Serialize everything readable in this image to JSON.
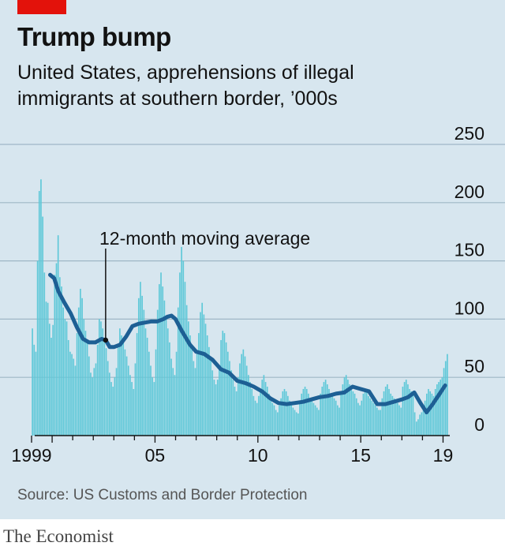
{
  "colors": {
    "background": "#d7e6ef",
    "bars": "#5ec8d8",
    "line": "#1d5f94",
    "accent": "#e3120b"
  },
  "title": "Trump bump",
  "subtitle_line1": "United States, apprehensions of illegal",
  "subtitle_line2": "immigrants at southern border, ’000s",
  "source": "Source: US Customs and Border Protection",
  "footer": "The Economist",
  "chart_data": {
    "type": "bar",
    "title": "Trump bump",
    "ylabel": "apprehensions of illegal immigrants at southern border, ’000s",
    "ylim": [
      0,
      250
    ],
    "yticks": [
      0,
      50,
      100,
      150,
      200,
      250
    ],
    "ytick_labels": [
      "0",
      "50",
      "100",
      "150",
      "200",
      "250"
    ],
    "xlim": [
      1999.0,
      2019.25
    ],
    "xticks": [
      1999,
      2005,
      2010,
      2015,
      2019
    ],
    "xtick_labels": [
      "1999",
      "05",
      "10",
      "15",
      "19"
    ],
    "grid": true,
    "bar_values_monthly_from_Jan_1999": [
      92,
      78,
      72,
      150,
      210,
      220,
      188,
      140,
      115,
      114,
      96,
      84,
      95,
      138,
      148,
      172,
      136,
      128,
      110,
      100,
      98,
      82,
      72,
      70,
      66,
      60,
      88,
      110,
      126,
      118,
      100,
      90,
      82,
      68,
      54,
      50,
      58,
      62,
      78,
      100,
      98,
      92,
      82,
      75,
      64,
      54,
      46,
      42,
      50,
      58,
      76,
      92,
      86,
      82,
      74,
      68,
      60,
      52,
      46,
      40,
      62,
      88,
      118,
      132,
      120,
      108,
      92,
      84,
      72,
      60,
      50,
      46,
      74,
      108,
      130,
      140,
      128,
      116,
      102,
      92,
      80,
      66,
      58,
      52,
      72,
      110,
      140,
      162,
      150,
      132,
      112,
      98,
      86,
      74,
      64,
      58,
      70,
      88,
      106,
      114,
      104,
      96,
      86,
      76,
      66,
      56,
      48,
      44,
      48,
      60,
      82,
      90,
      88,
      80,
      72,
      64,
      56,
      48,
      42,
      38,
      50,
      62,
      70,
      74,
      68,
      60,
      52,
      46,
      40,
      34,
      30,
      28,
      34,
      40,
      48,
      52,
      46,
      42,
      36,
      32,
      28,
      26,
      22,
      20,
      26,
      32,
      38,
      40,
      38,
      34,
      30,
      26,
      24,
      22,
      20,
      19,
      30,
      36,
      40,
      42,
      40,
      36,
      32,
      30,
      28,
      26,
      24,
      22,
      36,
      42,
      46,
      48,
      44,
      40,
      36,
      34,
      32,
      30,
      26,
      24,
      38,
      44,
      50,
      52,
      48,
      44,
      40,
      38,
      36,
      32,
      28,
      26,
      30,
      36,
      40,
      38,
      34,
      32,
      30,
      28,
      26,
      24,
      22,
      22,
      32,
      38,
      42,
      44,
      40,
      36,
      34,
      32,
      30,
      28,
      26,
      24,
      42,
      46,
      48,
      44,
      40,
      38,
      36,
      20,
      12,
      14,
      18,
      20,
      24,
      30,
      36,
      40,
      38,
      36,
      34,
      40,
      44,
      46,
      48,
      50,
      58,
      64,
      70
    ],
    "series": [
      {
        "name": "12-month moving average",
        "x": [
          1999.9,
          2000.1,
          2000.3,
          2000.6,
          2000.9,
          2001.2,
          2001.5,
          2001.8,
          2002.1,
          2002.4,
          2002.6,
          2002.8,
          2003.0,
          2003.3,
          2003.6,
          2003.9,
          2004.2,
          2004.5,
          2004.8,
          2005.1,
          2005.4,
          2005.6,
          2005.8,
          2006.0,
          2006.3,
          2006.7,
          2007.0,
          2007.4,
          2007.8,
          2008.2,
          2008.6,
          2009.0,
          2009.4,
          2009.8,
          2010.2,
          2010.6,
          2011.0,
          2011.4,
          2011.8,
          2012.2,
          2012.6,
          2013.0,
          2013.4,
          2013.8,
          2014.2,
          2014.6,
          2015.0,
          2015.4,
          2015.8,
          2016.2,
          2016.6,
          2017.0,
          2017.3,
          2017.6,
          2017.9,
          2018.2,
          2018.5,
          2018.8,
          2019.1
        ],
        "values": [
          138,
          135,
          124,
          114,
          105,
          93,
          83,
          80,
          80,
          83,
          82,
          76,
          76,
          78,
          85,
          94,
          96,
          97,
          98,
          98,
          100,
          102,
          103,
          100,
          90,
          78,
          72,
          70,
          65,
          57,
          54,
          47,
          45,
          42,
          38,
          32,
          28,
          27,
          28,
          29,
          31,
          33,
          34,
          36,
          37,
          42,
          40,
          38,
          27,
          27,
          29,
          31,
          33,
          37,
          28,
          20,
          27,
          35,
          43
        ]
      }
    ],
    "annotations": [
      "12-month moving average"
    ]
  }
}
